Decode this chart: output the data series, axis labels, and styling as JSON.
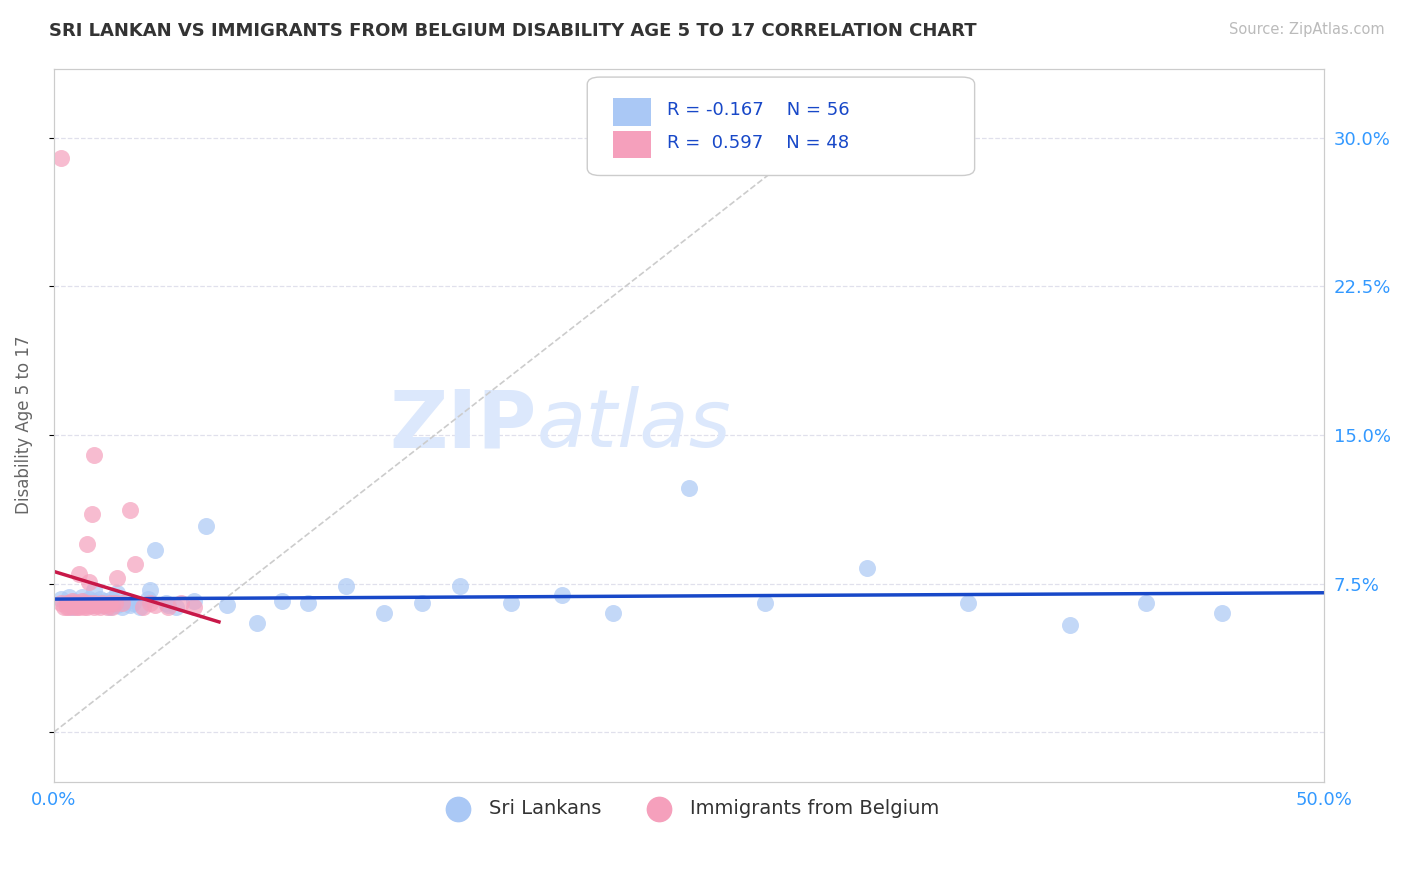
{
  "title": "SRI LANKAN VS IMMIGRANTS FROM BELGIUM DISABILITY AGE 5 TO 17 CORRELATION CHART",
  "source": "Source: ZipAtlas.com",
  "ylabel": "Disability Age 5 to 17",
  "xlim": [
    0.0,
    0.5
  ],
  "ylim": [
    -0.025,
    0.335
  ],
  "legend_r1": "R = -0.167",
  "legend_n1": "N = 56",
  "legend_r2": "R =  0.597",
  "legend_n2": "N = 48",
  "blue_color": "#aac8f5",
  "pink_color": "#f5a0bc",
  "blue_line_color": "#1848c8",
  "pink_line_color": "#c81848",
  "ref_line_color": "#cccccc",
  "title_color": "#333333",
  "axis_label_color": "#3399ff",
  "watermark_zip": "ZIP",
  "watermark_atlas": "atlas",
  "watermark_color": "#dce8fc",
  "grid_color": "#e0e0ec",
  "background_color": "#ffffff",
  "blue_scatter_x": [
    0.003,
    0.005,
    0.006,
    0.007,
    0.008,
    0.009,
    0.01,
    0.011,
    0.012,
    0.013,
    0.014,
    0.015,
    0.016,
    0.017,
    0.018,
    0.019,
    0.02,
    0.021,
    0.022,
    0.023,
    0.024,
    0.025,
    0.027,
    0.029,
    0.031,
    0.034,
    0.037,
    0.04,
    0.044,
    0.048,
    0.055,
    0.06,
    0.068,
    0.08,
    0.09,
    0.1,
    0.115,
    0.13,
    0.145,
    0.16,
    0.18,
    0.2,
    0.22,
    0.25,
    0.28,
    0.32,
    0.36,
    0.4,
    0.43,
    0.46,
    0.016,
    0.02,
    0.025,
    0.03,
    0.038,
    0.045
  ],
  "blue_scatter_y": [
    0.067,
    0.065,
    0.068,
    0.063,
    0.066,
    0.065,
    0.064,
    0.068,
    0.066,
    0.065,
    0.067,
    0.064,
    0.066,
    0.065,
    0.067,
    0.064,
    0.066,
    0.065,
    0.063,
    0.067,
    0.065,
    0.064,
    0.063,
    0.066,
    0.065,
    0.063,
    0.067,
    0.092,
    0.065,
    0.063,
    0.066,
    0.104,
    0.064,
    0.055,
    0.066,
    0.065,
    0.074,
    0.06,
    0.065,
    0.074,
    0.065,
    0.069,
    0.06,
    0.123,
    0.065,
    0.083,
    0.065,
    0.054,
    0.065,
    0.06,
    0.072,
    0.065,
    0.07,
    0.064,
    0.072,
    0.064
  ],
  "pink_scatter_x": [
    0.003,
    0.004,
    0.005,
    0.005,
    0.006,
    0.006,
    0.007,
    0.007,
    0.008,
    0.008,
    0.008,
    0.009,
    0.009,
    0.01,
    0.01,
    0.011,
    0.011,
    0.012,
    0.012,
    0.013,
    0.013,
    0.013,
    0.014,
    0.014,
    0.015,
    0.015,
    0.016,
    0.016,
    0.016,
    0.017,
    0.018,
    0.019,
    0.02,
    0.021,
    0.022,
    0.023,
    0.024,
    0.025,
    0.027,
    0.03,
    0.032,
    0.035,
    0.038,
    0.04,
    0.045,
    0.05,
    0.055,
    0.003
  ],
  "pink_scatter_y": [
    0.065,
    0.063,
    0.065,
    0.063,
    0.065,
    0.063,
    0.064,
    0.066,
    0.064,
    0.063,
    0.065,
    0.063,
    0.065,
    0.063,
    0.08,
    0.064,
    0.066,
    0.063,
    0.065,
    0.064,
    0.063,
    0.095,
    0.065,
    0.076,
    0.064,
    0.11,
    0.063,
    0.065,
    0.14,
    0.064,
    0.063,
    0.065,
    0.064,
    0.063,
    0.065,
    0.063,
    0.065,
    0.078,
    0.065,
    0.112,
    0.085,
    0.063,
    0.065,
    0.064,
    0.063,
    0.065,
    0.063,
    0.29
  ]
}
